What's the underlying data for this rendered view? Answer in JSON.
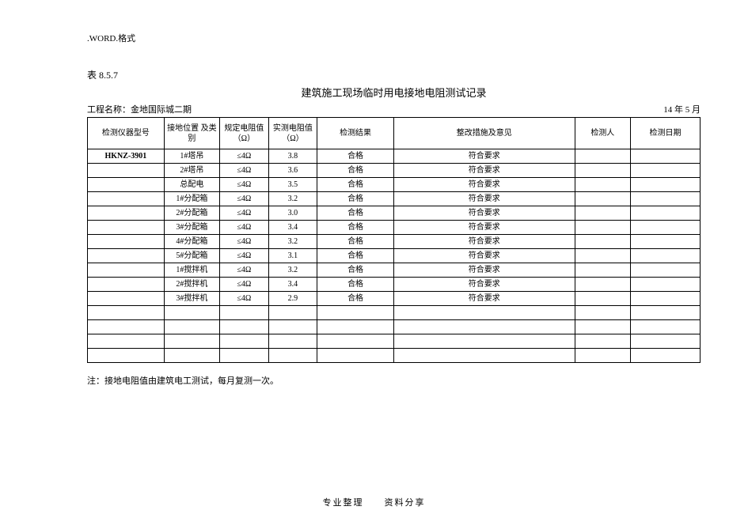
{
  "header_label": ".WORD.格式",
  "table_ref": "表 8.5.7",
  "main_title": "建筑施工现场临时用电接地电阻测试记录",
  "project_label": "工程名称：金地国际城二期",
  "date_text": "14 年 5 月",
  "columns": [
    "检测仪器型号",
    "接地位置\n及类别",
    "规定电阻值\n（Ω）",
    "实测电阻值\n（Ω）",
    "检测结果",
    "整改措施及意见",
    "检测人",
    "检测日期"
  ],
  "rows": [
    {
      "cells": [
        "HKNZ-3901",
        "1#塔吊",
        "≤4Ω",
        "3.8",
        "合格",
        "符合要求",
        "",
        ""
      ],
      "bold0": true
    },
    {
      "cells": [
        "",
        "2#塔吊",
        "≤4Ω",
        "3.6",
        "合格",
        "符合要求",
        "",
        ""
      ]
    },
    {
      "cells": [
        "",
        "总配电",
        "≤4Ω",
        "3.5",
        "合格",
        "符合要求",
        "",
        ""
      ]
    },
    {
      "cells": [
        "",
        "1#分配箱",
        "≤4Ω",
        "3.2",
        "合格",
        "符合要求",
        "",
        ""
      ]
    },
    {
      "cells": [
        "",
        "2#分配箱",
        "≤4Ω",
        "3.0",
        "合格",
        "符合要求",
        "",
        ""
      ]
    },
    {
      "cells": [
        "",
        "3#分配箱",
        "≤4Ω",
        "3.4",
        "合格",
        "符合要求",
        "",
        ""
      ]
    },
    {
      "cells": [
        "",
        "4#分配箱",
        "≤4Ω",
        "3.2",
        "合格",
        "符合要求",
        "",
        ""
      ]
    },
    {
      "cells": [
        "",
        "5#分配箱",
        "≤4Ω",
        "3.1",
        "合格",
        "符合要求",
        "",
        ""
      ]
    },
    {
      "cells": [
        "",
        "1#搅拌机",
        "≤4Ω",
        "3.2",
        "合格",
        "符合要求",
        "",
        ""
      ]
    },
    {
      "cells": [
        "",
        "2#搅拌机",
        "≤4Ω",
        "3.4",
        "合格",
        "符合要求",
        "",
        ""
      ]
    },
    {
      "cells": [
        "",
        "3#搅拌机",
        "≤4Ω",
        "2.9",
        "合格",
        "符合要求",
        "",
        ""
      ]
    },
    {
      "cells": [
        "",
        "",
        "",
        "",
        "",
        "",
        "",
        ""
      ]
    },
    {
      "cells": [
        "",
        "",
        "",
        "",
        "",
        "",
        "",
        ""
      ]
    },
    {
      "cells": [
        "",
        "",
        "",
        "",
        "",
        "",
        "",
        ""
      ]
    },
    {
      "cells": [
        "",
        "",
        "",
        "",
        "",
        "",
        "",
        ""
      ]
    }
  ],
  "note": "注：接地电阻值由建筑电工测试，每月复测一次。",
  "footer": "专业整理　　资料分享"
}
